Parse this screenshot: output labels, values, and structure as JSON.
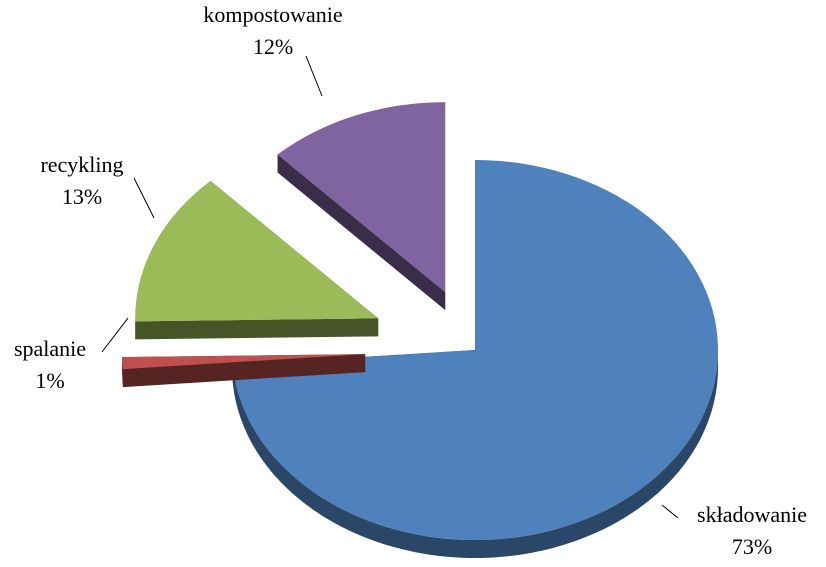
{
  "chart_data": {
    "type": "pie",
    "style": "3d-exploded",
    "title": "",
    "legend": "none",
    "slices": [
      {
        "label": "składowanie",
        "value": 73,
        "value_label": "73%",
        "color": "#4F81BD"
      },
      {
        "label": "spalanie",
        "value": 1,
        "value_label": "1%",
        "color": "#C0504D"
      },
      {
        "label": "recykling",
        "value": 13,
        "value_label": "13%",
        "color": "#9BBB59"
      },
      {
        "label": "kompostowanie",
        "value": 12,
        "value_label": "12%",
        "color": "#8064A2"
      }
    ]
  }
}
